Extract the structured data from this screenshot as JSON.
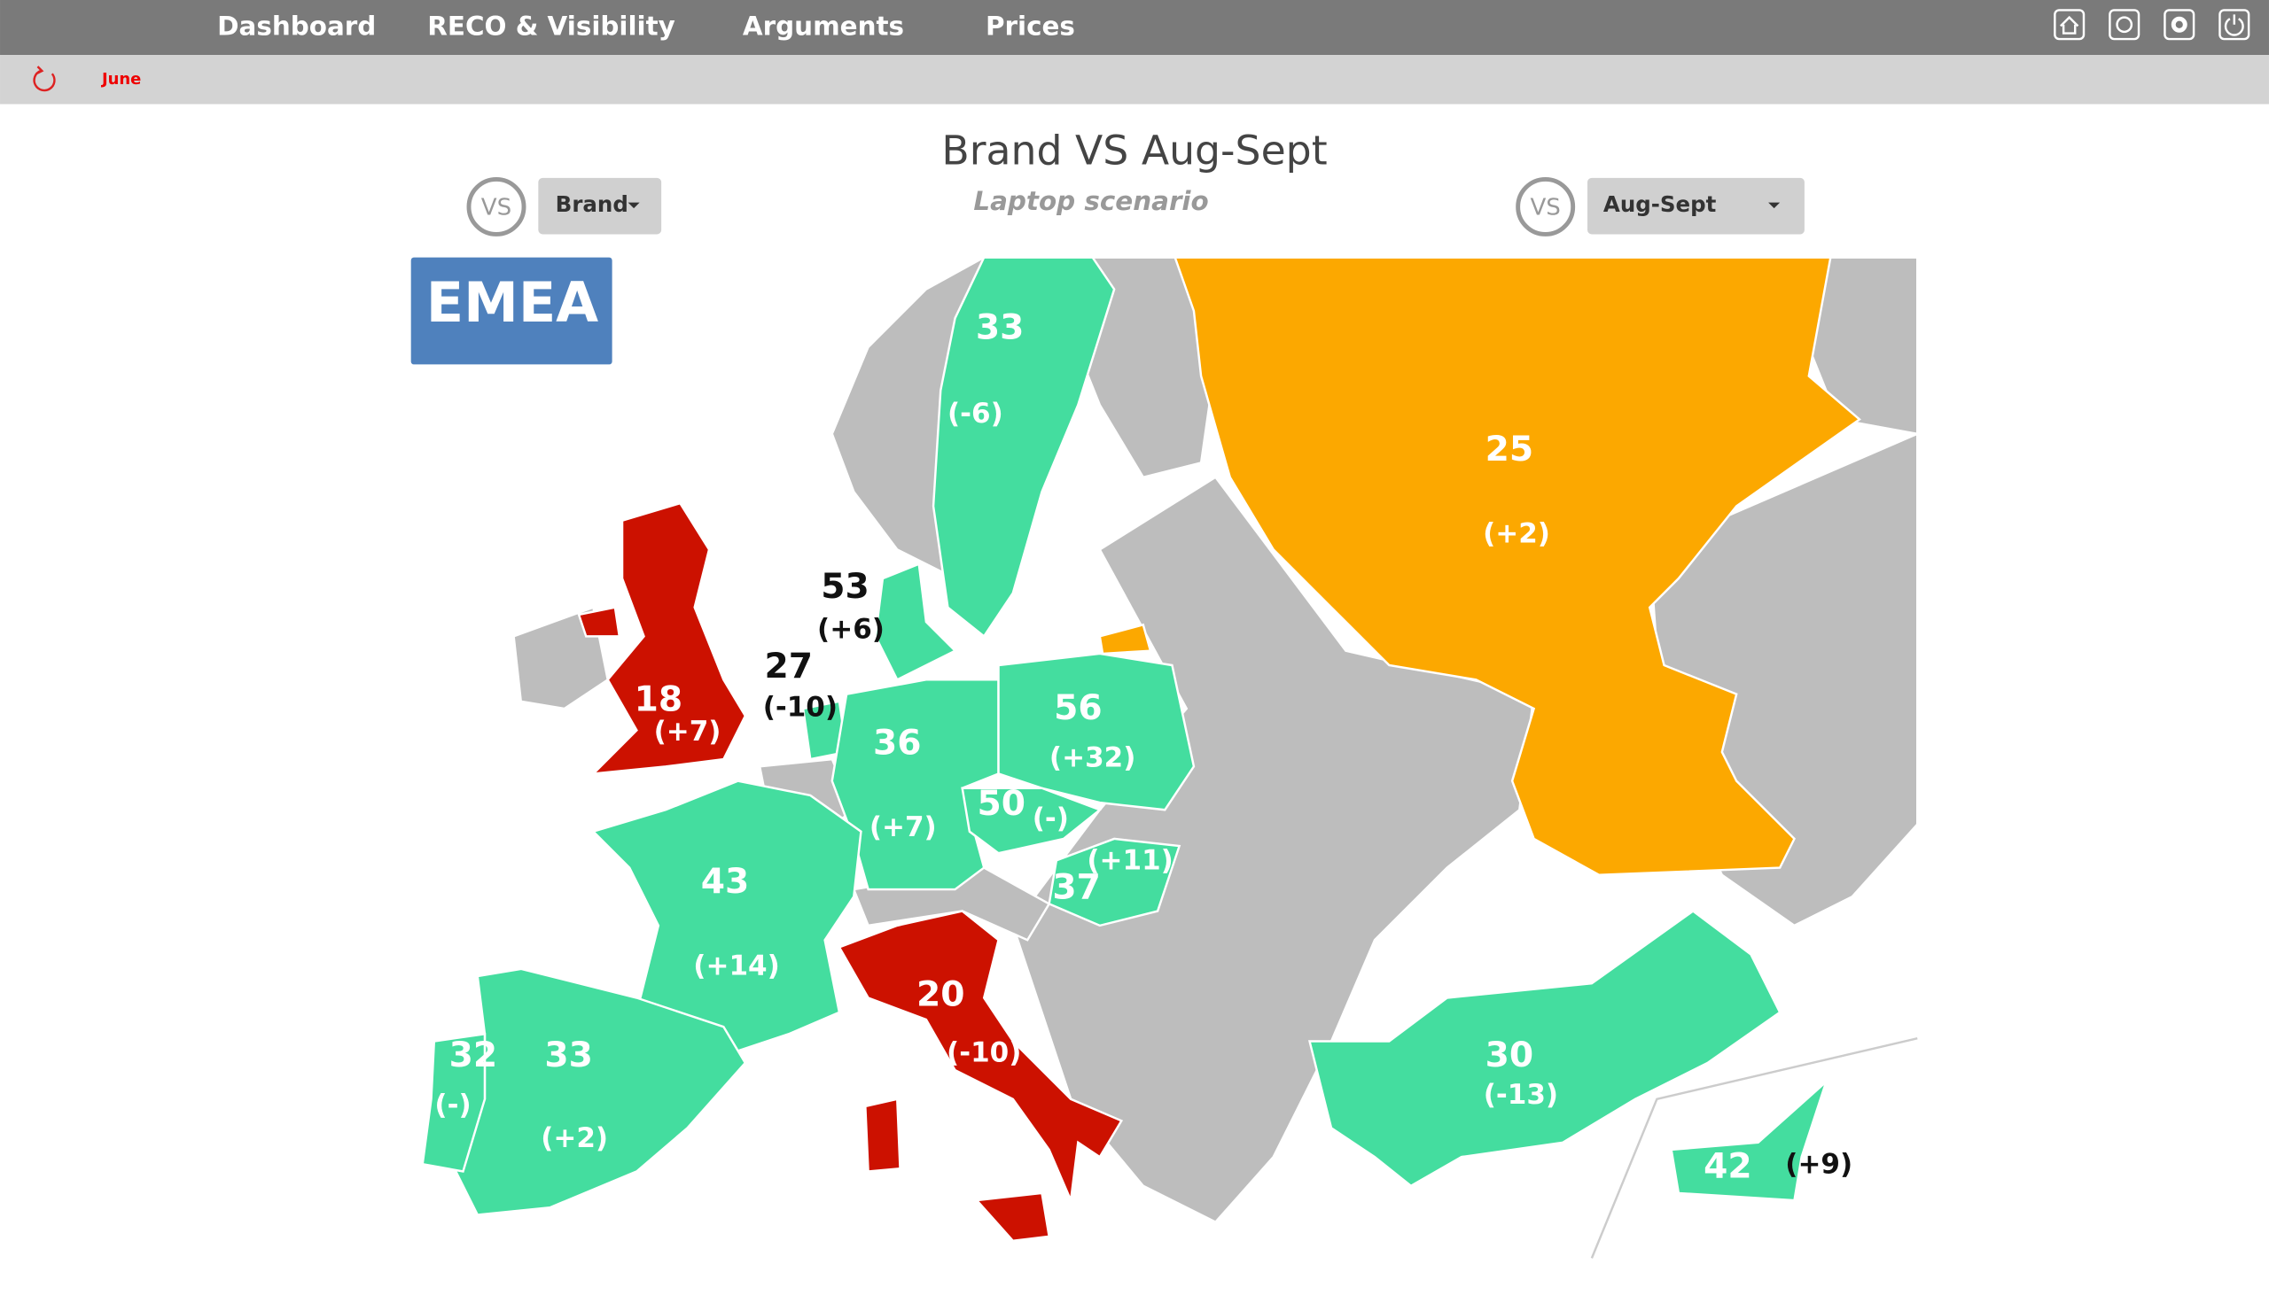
{
  "nav": {
    "items": [
      "Dashboard",
      "RECO & Visibility",
      "Arguments",
      "Prices"
    ]
  },
  "filter": {
    "period": "June"
  },
  "header": {
    "title": "Brand VS Aug-Sept",
    "subtitle": "Laptop scenario",
    "vs_left": "VS",
    "left_select": "Brand",
    "vs_right": "VS",
    "right_select": "Aug-Sept"
  },
  "map": {
    "region": "EMEA",
    "countries": [
      {
        "value": "33",
        "change": "(-6)",
        "color": "#44dd9f"
      },
      {
        "value": "25",
        "change": "(+2)",
        "color": "#fca800"
      },
      {
        "value": "53",
        "change": "(+6)",
        "color": "#44dd9f"
      },
      {
        "value": "27",
        "change": "(-10)",
        "color": "#44dd9f"
      },
      {
        "value": "18",
        "change": "(+7)",
        "color": "#cc1100"
      },
      {
        "value": "36",
        "change": "(+7)",
        "color": "#44dd9f"
      },
      {
        "value": "56",
        "change": "(+32)",
        "color": "#44dd9f"
      },
      {
        "value": "50",
        "change": "(-)",
        "color": "#44dd9f"
      },
      {
        "value": "37",
        "change": "(+11)",
        "color": "#44dd9f"
      },
      {
        "value": "43",
        "change": "(+14)",
        "color": "#44dd9f"
      },
      {
        "value": "20",
        "change": "(-10)",
        "color": "#cc1100"
      },
      {
        "value": "32",
        "change": "(-)",
        "color": "#44dd9f"
      },
      {
        "value": "33",
        "change": "(+2)",
        "color": "#44dd9f"
      },
      {
        "value": "30",
        "change": "(-13)",
        "color": "#44dd9f"
      },
      {
        "value": "42",
        "change": "(+9)",
        "color": "#44dd9f"
      }
    ]
  }
}
